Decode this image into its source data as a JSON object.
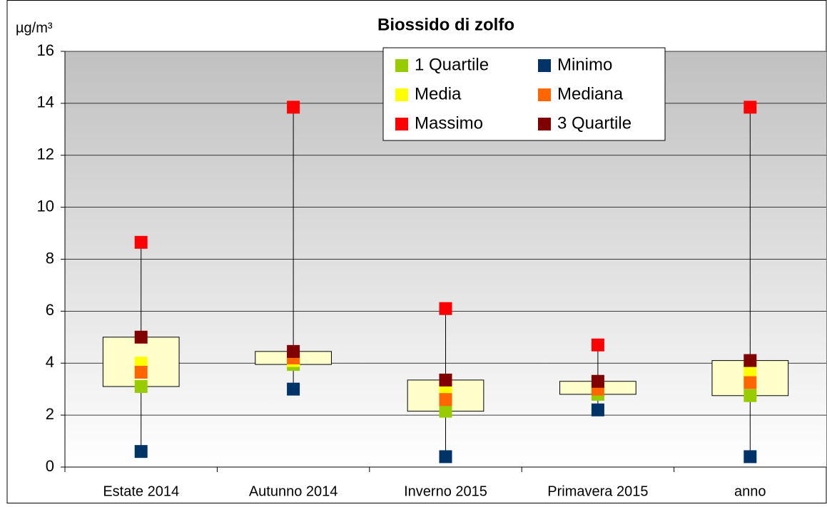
{
  "chart_data": {
    "type": "boxmarkers",
    "title": "Biossido di zolfo",
    "y_label": "µg/m³",
    "categories": [
      "Estate 2014",
      "Autunno 2014",
      "Inverno 2015",
      "Primavera 2015",
      "anno"
    ],
    "series": [
      {
        "name": "1 Quartile",
        "color": "#99cc00",
        "values": [
          3.1,
          3.95,
          2.15,
          2.8,
          2.75
        ]
      },
      {
        "name": "Minimo",
        "color": "#003366",
        "values": [
          0.6,
          3.0,
          0.4,
          2.2,
          0.4
        ]
      },
      {
        "name": "Media",
        "color": "#ffff00",
        "values": [
          4.0,
          4.1,
          2.9,
          3.1,
          3.6
        ]
      },
      {
        "name": "Mediana",
        "color": "#ff6600",
        "values": [
          3.65,
          4.2,
          2.6,
          3.0,
          3.25
        ]
      },
      {
        "name": "Massimo",
        "color": "#ff0000",
        "values": [
          8.65,
          13.85,
          6.1,
          4.7,
          13.85
        ]
      },
      {
        "name": "3 Quartile",
        "color": "#800000",
        "values": [
          5.0,
          4.45,
          3.35,
          3.3,
          4.1
        ]
      }
    ],
    "box_color": "#ffffcc",
    "ylim": [
      0,
      16
    ],
    "yticks": [
      0,
      2,
      4,
      6,
      8,
      10,
      12,
      14,
      16
    ],
    "grid": true,
    "legend": "top"
  }
}
